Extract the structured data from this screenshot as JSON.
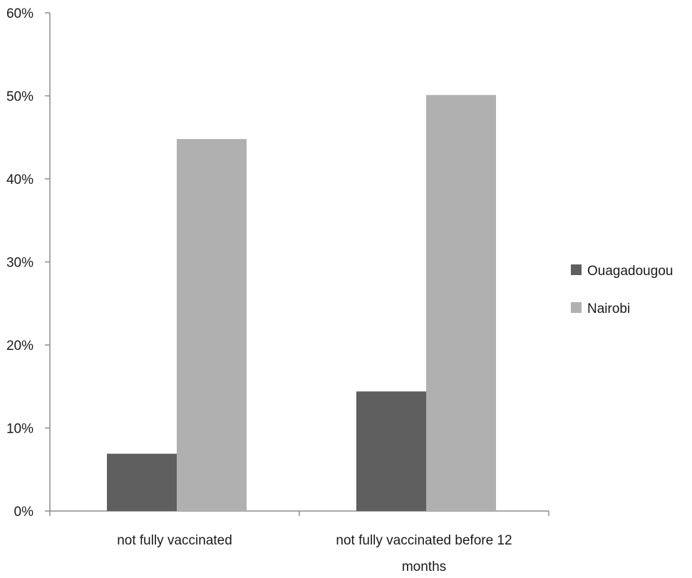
{
  "chart_data": {
    "type": "bar",
    "title": "",
    "xlabel": "",
    "ylabel": "",
    "categories": [
      [
        "not fully vaccinated"
      ],
      [
        "not fully vaccinated before 12",
        "months"
      ]
    ],
    "series": [
      {
        "name": "Ouagadougou",
        "color": "#5f5f5f",
        "values": [
          0.069,
          0.144
        ]
      },
      {
        "name": "Nairobi",
        "color": "#b0b0b0",
        "values": [
          0.448,
          0.501
        ]
      }
    ],
    "ylim": [
      0,
      0.6
    ],
    "yticks": [
      {
        "value": 0,
        "label": "0%"
      },
      {
        "value": 0.1,
        "label": "10%"
      },
      {
        "value": 0.2,
        "label": "20%"
      },
      {
        "value": 0.3,
        "label": "30%"
      },
      {
        "value": 0.4,
        "label": "40%"
      },
      {
        "value": 0.5,
        "label": "50%"
      },
      {
        "value": 0.6,
        "label": "60%"
      }
    ],
    "grid": false,
    "legend_position": "right",
    "axis_color": "#8c8c8c"
  }
}
